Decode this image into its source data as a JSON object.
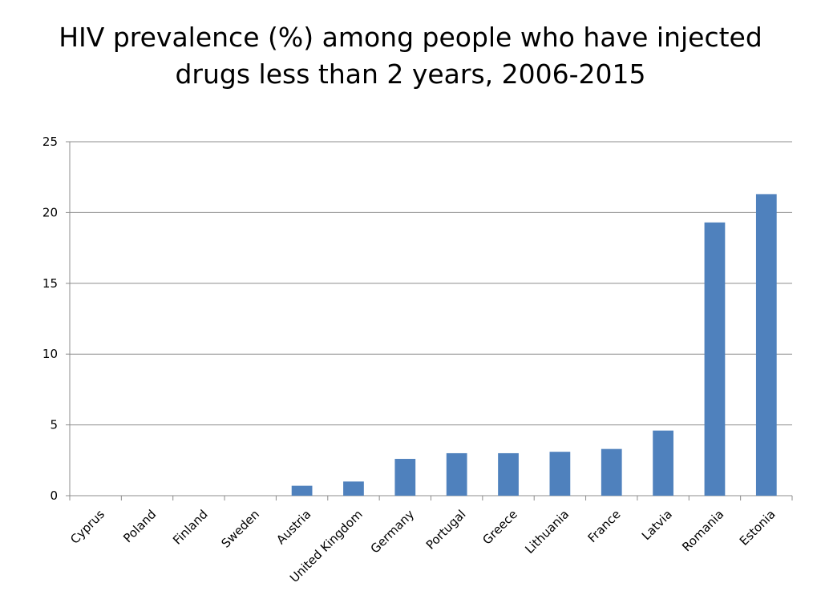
{
  "slide": {
    "title_line1": "HIV prevalence (%) among people who have injected",
    "title_line2": "drugs less than 2 years, 2006-2015"
  },
  "chart_data": {
    "type": "bar",
    "title": "HIV prevalence (%) among people who have injected drugs less than 2 years, 2006-2015",
    "categories": [
      "Cyprus",
      "Poland",
      "Finland",
      "Sweden",
      "Austria",
      "United Kingdom",
      "Germany",
      "Portugal",
      "Greece",
      "Lithuania",
      "France",
      "Latvia",
      "Romania",
      "Estonia"
    ],
    "values": [
      0,
      0,
      0,
      0,
      0.7,
      1.0,
      2.6,
      3.0,
      3.0,
      3.1,
      3.3,
      4.6,
      19.3,
      21.3
    ],
    "xlabel": "",
    "ylabel": "",
    "ylim": [
      0,
      25
    ],
    "yticks": [
      0,
      5,
      10,
      15,
      20,
      25
    ],
    "grid": true,
    "legend": "none",
    "bar_color": "#4f81bd",
    "grid_color": "#8c8c8c"
  }
}
